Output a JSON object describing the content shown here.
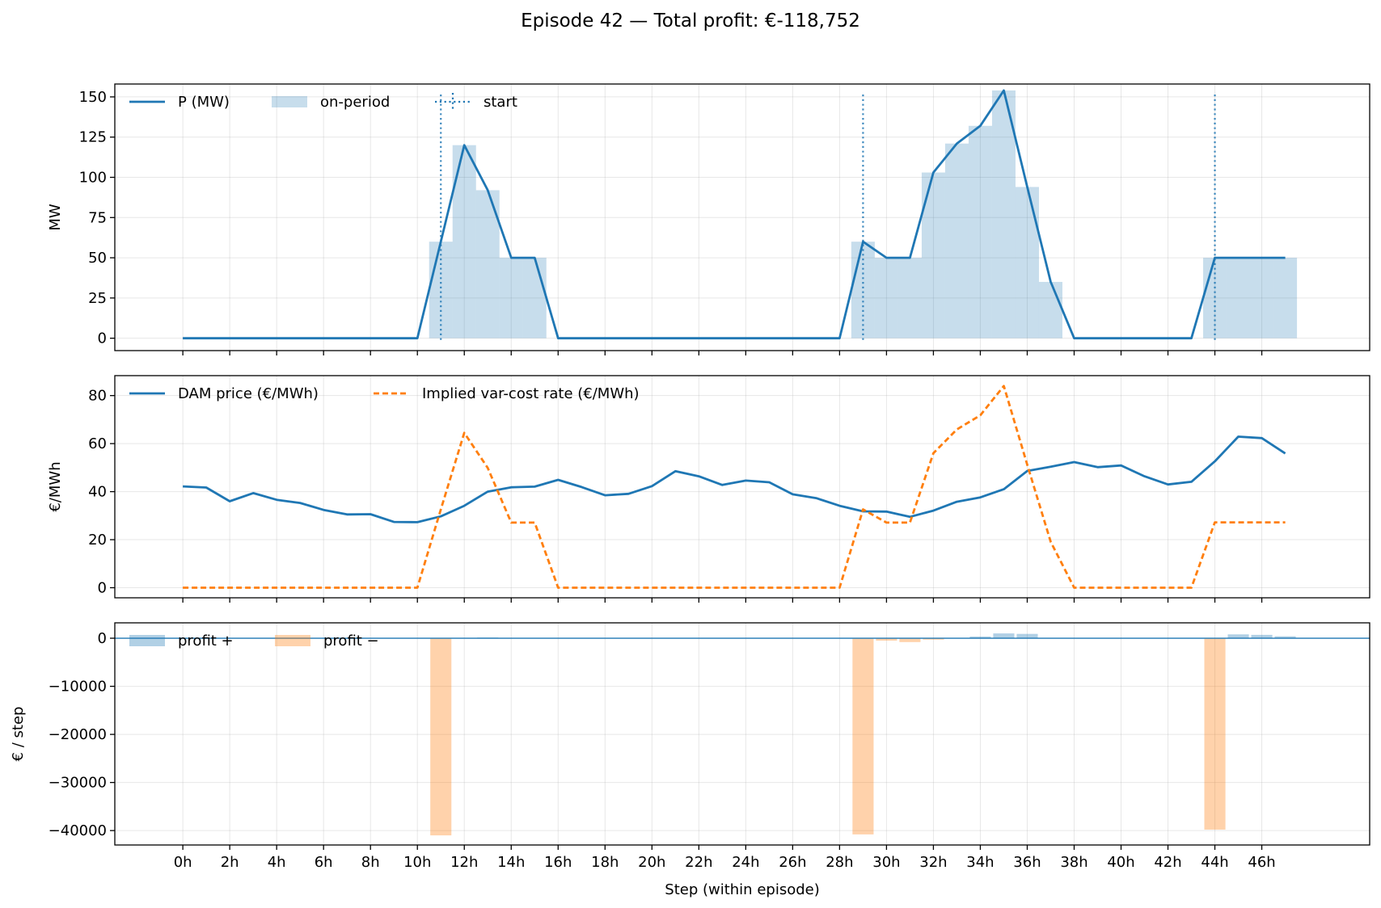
{
  "chart_data": {
    "title": "Episode 42 — Total profit: €-118,752",
    "xlabel": "Step (within episode)",
    "xtick_labels": [
      "0h",
      "2h",
      "4h",
      "6h",
      "8h",
      "10h",
      "12h",
      "14h",
      "16h",
      "18h",
      "20h",
      "22h",
      "24h",
      "26h",
      "28h",
      "30h",
      "32h",
      "34h",
      "36h",
      "38h",
      "40h",
      "42h",
      "44h",
      "46h"
    ],
    "xlim": [
      -2.9,
      50.6
    ],
    "steps": [
      0,
      1,
      2,
      3,
      4,
      5,
      6,
      7,
      8,
      9,
      10,
      11,
      12,
      13,
      14,
      15,
      16,
      17,
      18,
      19,
      20,
      21,
      22,
      23,
      24,
      25,
      26,
      27,
      28,
      29,
      30,
      31,
      32,
      33,
      34,
      35,
      36,
      37,
      38,
      39,
      40,
      41,
      42,
      43,
      44,
      45,
      46,
      47
    ],
    "grid": true,
    "panels": [
      {
        "type": "line",
        "ylabel": "MW",
        "ylim": [
          -7.7,
          158
        ],
        "yticks": [
          0,
          25,
          50,
          75,
          100,
          125,
          150
        ],
        "ytick_labels": [
          "0",
          "25",
          "50",
          "75",
          "100",
          "125",
          "150"
        ],
        "legend_position": "top-left",
        "series": [
          {
            "name": "P (MW)",
            "kind": "line",
            "color": "#1f77b4",
            "values": [
              0,
              0,
              0,
              0,
              0,
              0,
              0,
              0,
              0,
              0,
              0,
              60,
              120,
              92,
              50,
              50,
              0,
              0,
              0,
              0,
              0,
              0,
              0,
              0,
              0,
              0,
              0,
              0,
              0,
              60,
              50,
              50,
              103,
              121,
              132,
              154,
              94,
              35,
              0,
              0,
              0,
              0,
              0,
              0,
              50,
              50,
              50,
              50
            ]
          },
          {
            "name": "on-period",
            "kind": "bar",
            "color": "#1f77b4",
            "opacity": 0.25,
            "values": [
              0,
              0,
              0,
              0,
              0,
              0,
              0,
              0,
              0,
              0,
              0,
              60,
              120,
              92,
              50,
              50,
              0,
              0,
              0,
              0,
              0,
              0,
              0,
              0,
              0,
              0,
              0,
              0,
              0,
              60,
              50,
              50,
              103,
              121,
              132,
              154,
              94,
              35,
              0,
              0,
              0,
              0,
              0,
              0,
              50,
              50,
              50,
              50
            ]
          },
          {
            "name": "start",
            "kind": "vline",
            "color": "#1f77b4",
            "style": "dotted",
            "x": [
              11,
              29,
              44
            ]
          }
        ]
      },
      {
        "type": "line",
        "ylabel": "€/MWh",
        "ylim": [
          -4.2,
          88.3
        ],
        "yticks": [
          0,
          20,
          40,
          60,
          80
        ],
        "ytick_labels": [
          "0",
          "20",
          "40",
          "60",
          "80"
        ],
        "legend_position": "top-left",
        "series": [
          {
            "name": "DAM price (€/MWh)",
            "kind": "line",
            "color": "#1f77b4",
            "style": "solid",
            "values": [
              42.2,
              41.7,
              36.0,
              39.4,
              36.6,
              35.3,
              32.4,
              30.5,
              30.6,
              27.4,
              27.3,
              29.7,
              34.1,
              40.0,
              41.8,
              42.1,
              44.9,
              41.9,
              38.5,
              39.1,
              42.3,
              48.5,
              46.4,
              42.8,
              44.6,
              43.9,
              38.9,
              37.3,
              34.1,
              31.8,
              31.7,
              29.5,
              32.1,
              35.8,
              37.6,
              41.0,
              48.6,
              50.4,
              52.3,
              50.2,
              50.9,
              46.4,
              43.0,
              44.1,
              52.6,
              62.9,
              62.3,
              55.9
            ]
          },
          {
            "name": "Implied var-cost rate (€/MWh)",
            "kind": "line",
            "color": "#ff7f0e",
            "style": "dashed",
            "values": [
              0,
              0,
              0,
              0,
              0,
              0,
              0,
              0,
              0,
              0,
              0,
              32.6,
              64.5,
              49.9,
              27.1,
              27.1,
              0,
              0,
              0,
              0,
              0,
              0,
              0,
              0,
              0,
              0,
              0,
              0,
              0,
              32.6,
              27.1,
              27.1,
              56.0,
              65.9,
              71.8,
              84.0,
              51.2,
              19.1,
              0,
              0,
              0,
              0,
              0,
              0,
              27.2,
              27.2,
              27.2,
              27.2
            ]
          }
        ]
      },
      {
        "type": "bar",
        "ylabel": "€ / step",
        "ylim": [
          -43000,
          3200
        ],
        "yticks": [
          0,
          -10000,
          -20000,
          -30000,
          -40000
        ],
        "ytick_labels": [
          "0",
          "−10000",
          "−20000",
          "−30000",
          "−40000"
        ],
        "legend_position": "top-left",
        "zero_line_color": "#1f77b4",
        "series": [
          {
            "name": "profit +",
            "kind": "bar",
            "color": "#1f77b4",
            "opacity": 0.35,
            "values": [
              0,
              0,
              0,
              0,
              0,
              0,
              0,
              0,
              0,
              0,
              0,
              0,
              0,
              150,
              60,
              20,
              0,
              0,
              0,
              0,
              0,
              0,
              0,
              0,
              0,
              0,
              0,
              0,
              0,
              0,
              0,
              0,
              0,
              0,
              350,
              1000,
              900,
              0,
              0,
              0,
              0,
              0,
              0,
              0,
              0,
              800,
              700,
              400
            ]
          },
          {
            "name": "profit −",
            "kind": "bar",
            "color": "#ff7f0e",
            "opacity": 0.35,
            "values": [
              0,
              0,
              0,
              0,
              0,
              0,
              0,
              0,
              0,
              0,
              0,
              -41000,
              0,
              0,
              0,
              0,
              0,
              0,
              0,
              0,
              0,
              0,
              0,
              0,
              0,
              0,
              0,
              0,
              0,
              -40800,
              -500,
              -800,
              -300,
              0,
              0,
              0,
              0,
              0,
              0,
              0,
              0,
              0,
              0,
              0,
              -39800,
              0,
              0,
              0
            ]
          }
        ]
      }
    ]
  }
}
